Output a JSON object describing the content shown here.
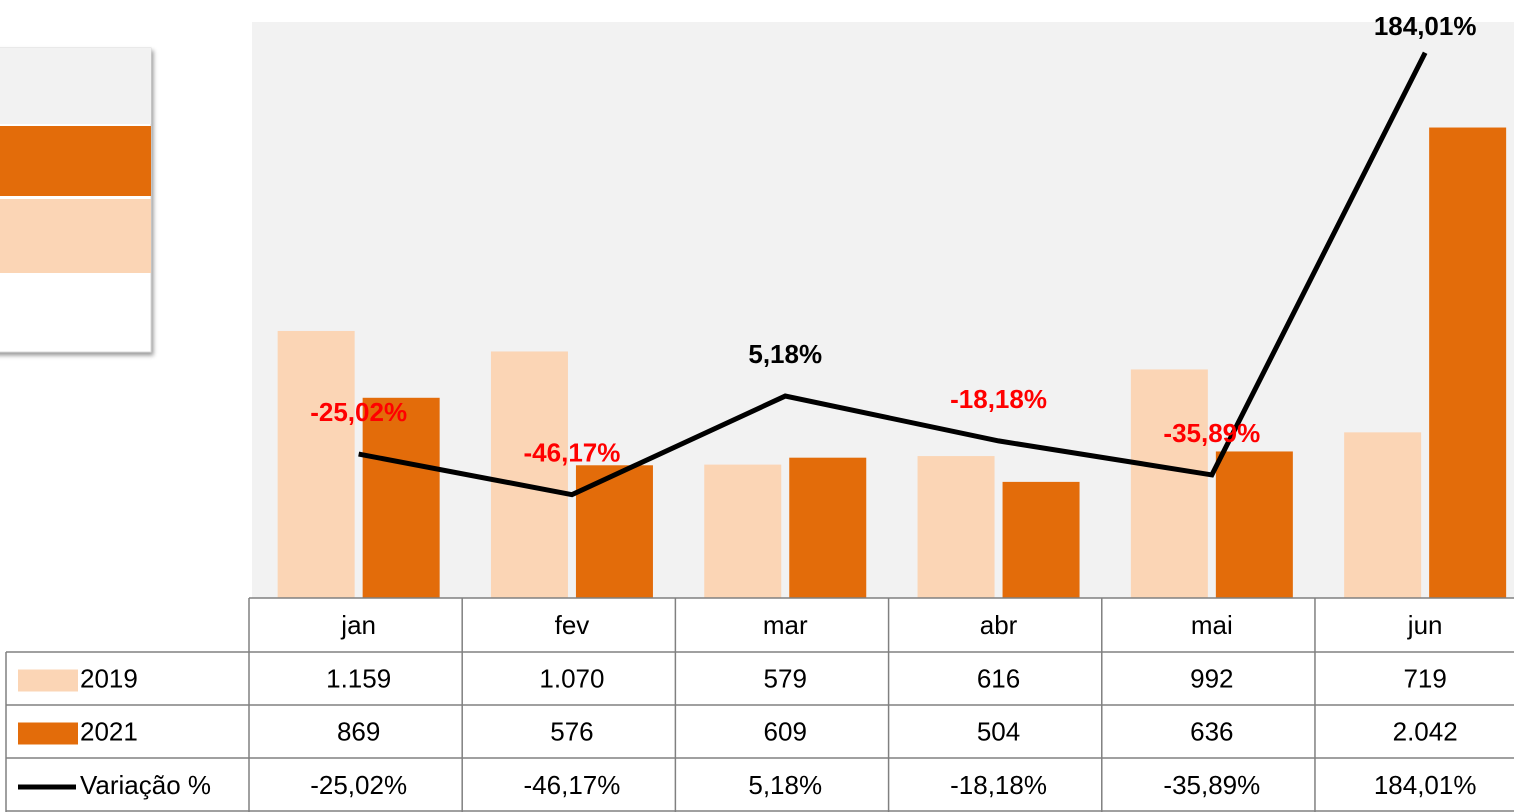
{
  "chart_data": {
    "type": "bar",
    "categories": [
      "jan",
      "fev",
      "mar",
      "abr",
      "mai",
      "jun"
    ],
    "series": [
      {
        "name": "2019",
        "color": "#fbd5b5",
        "values": [
          1159,
          1070,
          579,
          616,
          992,
          719
        ],
        "value_labels": [
          "1.159",
          "1.070",
          "579",
          "616",
          "992",
          "719"
        ]
      },
      {
        "name": "2021",
        "color": "#e36c0a",
        "values": [
          869,
          576,
          609,
          504,
          636,
          2042
        ],
        "value_labels": [
          "869",
          "576",
          "609",
          "504",
          "636",
          "2.042"
        ]
      },
      {
        "name": "Variação %",
        "type": "line",
        "axis": "y2",
        "color": "#000000",
        "values": [
          -25.02,
          -46.17,
          5.18,
          -18.18,
          -35.89,
          184.01
        ],
        "value_labels": [
          "-25,02%",
          "-46,17%",
          "5,18%",
          "-18,18%",
          "-35,89%",
          "184,01%"
        ]
      }
    ],
    "ylim": [
      0,
      2500
    ],
    "y2lim": [
      -100,
      200
    ],
    "negative_label_color": "#ff0000",
    "plot_background": "#f2f2f2",
    "data_table": true
  }
}
